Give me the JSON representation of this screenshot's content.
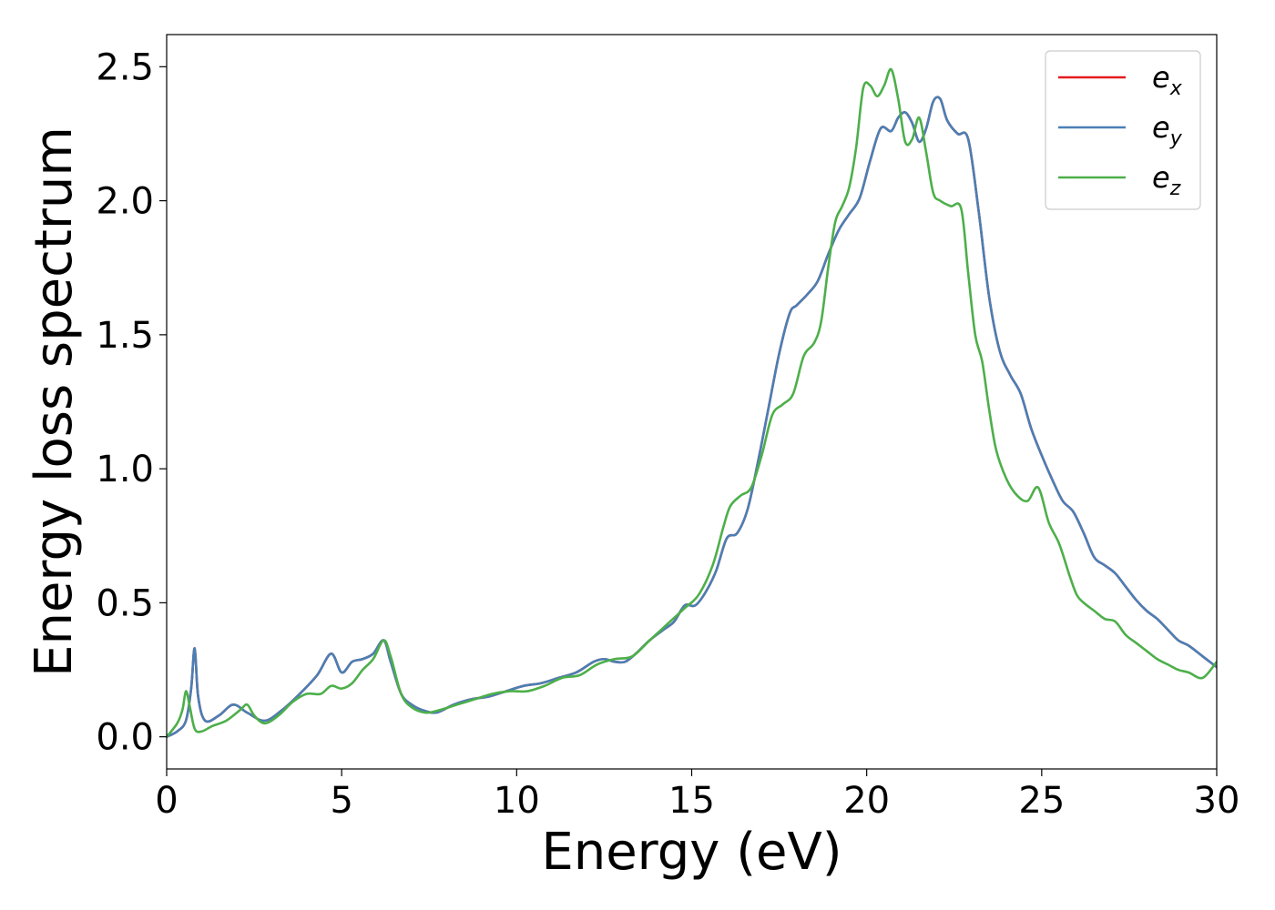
{
  "chart_data": {
    "type": "line",
    "title": "",
    "xlabel": "Energy (eV)",
    "ylabel": "Energy loss spectrum",
    "xlim": [
      0,
      30
    ],
    "ylim": [
      -0.12,
      2.62
    ],
    "xticks": [
      0,
      5,
      10,
      15,
      20,
      25,
      30
    ],
    "xtick_labels": [
      "0",
      "5",
      "10",
      "15",
      "20",
      "25",
      "30"
    ],
    "yticks": [
      0.0,
      0.5,
      1.0,
      1.5,
      2.0,
      2.5
    ],
    "ytick_labels": [
      "0.0",
      "0.5",
      "1.0",
      "1.5",
      "2.0",
      "2.5"
    ],
    "grid": false,
    "legend_position": "top-right",
    "series": [
      {
        "name": "e_x",
        "legend_base": "e",
        "legend_sub": "x",
        "color": "#e41a1c",
        "x": [
          0,
          0.3,
          0.55,
          0.7,
          0.8,
          0.9,
          1.1,
          1.5,
          1.9,
          2.3,
          2.8,
          3.3,
          3.8,
          4.3,
          4.7,
          5.0,
          5.3,
          5.6,
          5.9,
          6.2,
          6.4,
          6.7,
          7.0,
          7.3,
          7.7,
          8.2,
          8.7,
          9.2,
          9.7,
          10.2,
          10.7,
          11.2,
          11.7,
          12.2,
          12.5,
          12.8,
          13.1,
          13.4,
          13.8,
          14.2,
          14.5,
          14.8,
          15.1,
          15.4,
          15.7,
          16.0,
          16.3,
          16.6,
          16.9,
          17.2,
          17.5,
          17.8,
          18.0,
          18.3,
          18.6,
          18.9,
          19.2,
          19.5,
          19.8,
          20.1,
          20.4,
          20.7,
          20.9,
          21.1,
          21.3,
          21.5,
          21.7,
          21.9,
          22.1,
          22.3,
          22.6,
          22.9,
          23.2,
          23.5,
          23.8,
          24.1,
          24.4,
          24.7,
          25.0,
          25.3,
          25.6,
          25.9,
          26.2,
          26.5,
          26.8,
          27.1,
          27.4,
          27.7,
          28.0,
          28.3,
          28.6,
          28.9,
          29.2,
          29.6,
          30.0
        ],
        "y": [
          0.0,
          0.02,
          0.06,
          0.18,
          0.33,
          0.15,
          0.06,
          0.08,
          0.12,
          0.09,
          0.06,
          0.1,
          0.16,
          0.23,
          0.31,
          0.24,
          0.28,
          0.29,
          0.31,
          0.36,
          0.28,
          0.16,
          0.12,
          0.1,
          0.09,
          0.12,
          0.14,
          0.15,
          0.17,
          0.19,
          0.2,
          0.22,
          0.24,
          0.28,
          0.29,
          0.28,
          0.28,
          0.31,
          0.36,
          0.4,
          0.43,
          0.49,
          0.49,
          0.54,
          0.62,
          0.74,
          0.76,
          0.85,
          1.03,
          1.23,
          1.43,
          1.58,
          1.61,
          1.65,
          1.7,
          1.8,
          1.89,
          1.95,
          2.01,
          2.15,
          2.27,
          2.26,
          2.31,
          2.33,
          2.29,
          2.22,
          2.27,
          2.37,
          2.38,
          2.3,
          2.25,
          2.23,
          1.96,
          1.64,
          1.44,
          1.35,
          1.28,
          1.15,
          1.05,
          0.96,
          0.88,
          0.84,
          0.76,
          0.67,
          0.64,
          0.61,
          0.56,
          0.51,
          0.47,
          0.44,
          0.4,
          0.36,
          0.34,
          0.3,
          0.26
        ]
      },
      {
        "name": "e_y",
        "legend_base": "e",
        "legend_sub": "y",
        "color": "#4a7fb5",
        "x": [
          0,
          0.3,
          0.55,
          0.7,
          0.8,
          0.9,
          1.1,
          1.5,
          1.9,
          2.3,
          2.8,
          3.3,
          3.8,
          4.3,
          4.7,
          5.0,
          5.3,
          5.6,
          5.9,
          6.2,
          6.4,
          6.7,
          7.0,
          7.3,
          7.7,
          8.2,
          8.7,
          9.2,
          9.7,
          10.2,
          10.7,
          11.2,
          11.7,
          12.2,
          12.5,
          12.8,
          13.1,
          13.4,
          13.8,
          14.2,
          14.5,
          14.8,
          15.1,
          15.4,
          15.7,
          16.0,
          16.3,
          16.6,
          16.9,
          17.2,
          17.5,
          17.8,
          18.0,
          18.3,
          18.6,
          18.9,
          19.2,
          19.5,
          19.8,
          20.1,
          20.4,
          20.7,
          20.9,
          21.1,
          21.3,
          21.5,
          21.7,
          21.9,
          22.1,
          22.3,
          22.6,
          22.9,
          23.2,
          23.5,
          23.8,
          24.1,
          24.4,
          24.7,
          25.0,
          25.3,
          25.6,
          25.9,
          26.2,
          26.5,
          26.8,
          27.1,
          27.4,
          27.7,
          28.0,
          28.3,
          28.6,
          28.9,
          29.2,
          29.6,
          30.0
        ],
        "y": [
          0.0,
          0.02,
          0.06,
          0.18,
          0.33,
          0.15,
          0.06,
          0.08,
          0.12,
          0.09,
          0.06,
          0.1,
          0.16,
          0.23,
          0.31,
          0.24,
          0.28,
          0.29,
          0.31,
          0.36,
          0.28,
          0.16,
          0.12,
          0.1,
          0.09,
          0.12,
          0.14,
          0.15,
          0.17,
          0.19,
          0.2,
          0.22,
          0.24,
          0.28,
          0.29,
          0.28,
          0.28,
          0.31,
          0.36,
          0.4,
          0.43,
          0.49,
          0.49,
          0.54,
          0.62,
          0.74,
          0.76,
          0.85,
          1.03,
          1.23,
          1.43,
          1.58,
          1.61,
          1.65,
          1.7,
          1.8,
          1.89,
          1.95,
          2.01,
          2.15,
          2.27,
          2.26,
          2.31,
          2.33,
          2.29,
          2.22,
          2.27,
          2.37,
          2.38,
          2.3,
          2.25,
          2.23,
          1.96,
          1.64,
          1.44,
          1.35,
          1.28,
          1.15,
          1.05,
          0.96,
          0.88,
          0.84,
          0.76,
          0.67,
          0.64,
          0.61,
          0.56,
          0.51,
          0.47,
          0.44,
          0.4,
          0.36,
          0.34,
          0.3,
          0.26
        ]
      },
      {
        "name": "e_z",
        "legend_base": "e",
        "legend_sub": "z",
        "color": "#4daf4a",
        "x": [
          0,
          0.3,
          0.45,
          0.55,
          0.65,
          0.8,
          1.0,
          1.3,
          1.7,
          2.1,
          2.3,
          2.5,
          2.8,
          3.2,
          3.6,
          4.0,
          4.4,
          4.7,
          5.0,
          5.3,
          5.6,
          5.9,
          6.2,
          6.4,
          6.7,
          7.0,
          7.4,
          7.8,
          8.3,
          8.8,
          9.3,
          9.8,
          10.3,
          10.8,
          11.3,
          11.8,
          12.3,
          12.8,
          13.3,
          13.8,
          14.3,
          14.8,
          15.2,
          15.6,
          15.9,
          16.1,
          16.4,
          16.7,
          17.0,
          17.3,
          17.6,
          17.9,
          18.2,
          18.5,
          18.7,
          18.9,
          19.1,
          19.3,
          19.5,
          19.7,
          19.9,
          20.1,
          20.3,
          20.5,
          20.7,
          20.9,
          21.1,
          21.3,
          21.5,
          21.7,
          21.9,
          22.1,
          22.4,
          22.7,
          22.9,
          23.1,
          23.3,
          23.5,
          23.7,
          24.0,
          24.3,
          24.6,
          24.9,
          25.2,
          25.5,
          25.8,
          26.0,
          26.2,
          26.5,
          26.8,
          27.1,
          27.4,
          27.7,
          28.0,
          28.3,
          28.6,
          28.9,
          29.2,
          29.6,
          30.0
        ],
        "y": [
          0.0,
          0.05,
          0.1,
          0.17,
          0.12,
          0.03,
          0.02,
          0.04,
          0.06,
          0.1,
          0.12,
          0.08,
          0.05,
          0.08,
          0.13,
          0.16,
          0.16,
          0.19,
          0.18,
          0.2,
          0.25,
          0.29,
          0.36,
          0.3,
          0.16,
          0.11,
          0.09,
          0.1,
          0.12,
          0.14,
          0.16,
          0.17,
          0.17,
          0.19,
          0.22,
          0.23,
          0.27,
          0.29,
          0.3,
          0.36,
          0.42,
          0.48,
          0.53,
          0.64,
          0.78,
          0.86,
          0.9,
          0.93,
          1.05,
          1.2,
          1.24,
          1.28,
          1.42,
          1.47,
          1.55,
          1.75,
          1.92,
          1.98,
          2.05,
          2.2,
          2.42,
          2.43,
          2.39,
          2.43,
          2.49,
          2.38,
          2.22,
          2.23,
          2.31,
          2.18,
          2.03,
          2.0,
          1.98,
          1.97,
          1.73,
          1.5,
          1.4,
          1.22,
          1.07,
          0.96,
          0.9,
          0.88,
          0.93,
          0.8,
          0.72,
          0.6,
          0.53,
          0.5,
          0.47,
          0.44,
          0.43,
          0.38,
          0.35,
          0.32,
          0.29,
          0.27,
          0.25,
          0.24,
          0.22,
          0.28
        ]
      }
    ]
  }
}
